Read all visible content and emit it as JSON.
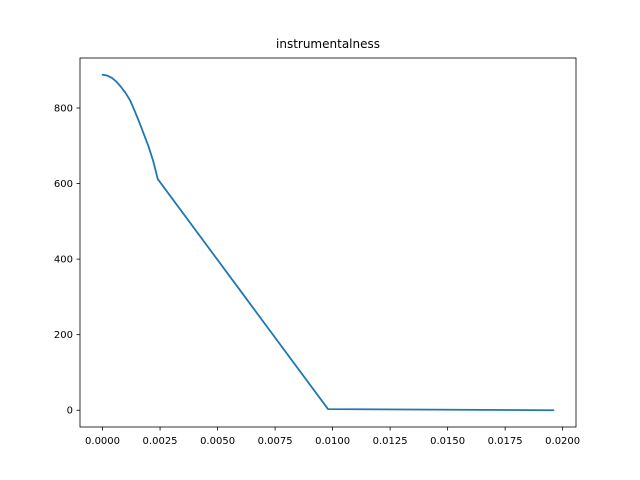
{
  "chart_data": {
    "type": "line",
    "title": "instrumentalness",
    "xlabel": "",
    "ylabel": "",
    "xlim": [
      -0.00098,
      0.02058
    ],
    "ylim": [
      -44.4,
      932.4
    ],
    "grid": false,
    "legend": "none",
    "x_ticks": [
      0.0,
      0.0025,
      0.005,
      0.0075,
      0.01,
      0.0125,
      0.015,
      0.0175,
      0.02
    ],
    "x_tick_labels": [
      "0.0000",
      "0.0025",
      "0.0050",
      "0.0075",
      "0.0100",
      "0.0125",
      "0.0150",
      "0.0175",
      "0.0200"
    ],
    "y_ticks": [
      0,
      200,
      400,
      600,
      800
    ],
    "y_tick_labels": [
      "0",
      "200",
      "400",
      "600",
      "800"
    ],
    "line_color": "#1f77b4",
    "series": [
      {
        "name": "instrumentalness",
        "x": [
          0.0,
          0.0002,
          0.0004,
          0.0006,
          0.0008,
          0.001,
          0.0012,
          0.0014,
          0.0016,
          0.0018,
          0.002,
          0.0022,
          0.0024,
          0.0098,
          0.0196
        ],
        "y": [
          888,
          886,
          880,
          870,
          856,
          840,
          820,
          792,
          762,
          730,
          698,
          660,
          612,
          3,
          0
        ]
      }
    ]
  }
}
